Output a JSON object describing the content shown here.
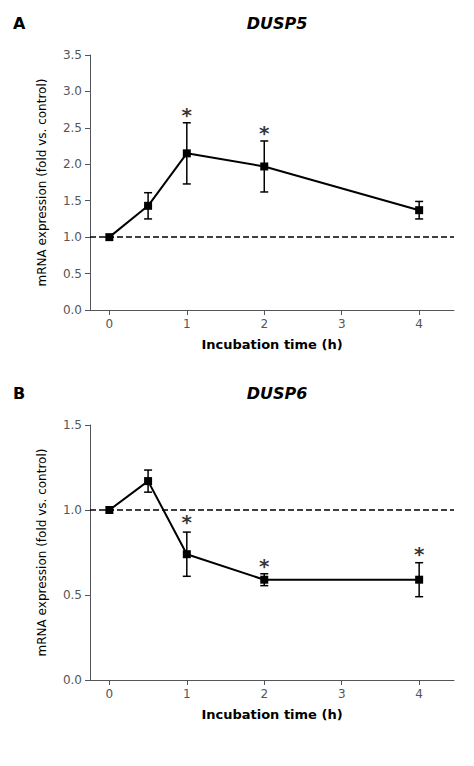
{
  "chart_data": [
    {
      "type": "line",
      "title": "DUSP5",
      "panel_label": "A",
      "x": [
        0,
        0.5,
        1,
        2,
        4
      ],
      "values": [
        1.0,
        1.43,
        2.15,
        1.97,
        1.37
      ],
      "yerr": [
        0.0,
        0.18,
        0.42,
        0.35,
        0.12
      ],
      "color": "#000000",
      "marker": "square",
      "annotations": [
        {
          "x": 1,
          "y": 2.6,
          "text": "*"
        },
        {
          "x": 2,
          "y": 2.35,
          "text": "*"
        }
      ],
      "reference_line": {
        "y": 1.0,
        "line_style": "dashed",
        "color": "#000000"
      },
      "xlabel": "Incubation time (h)",
      "ylabel": "mRNA expression (fold vs. control)",
      "xlim": [
        -0.25,
        4.45
      ],
      "xticks": [
        0,
        1,
        2,
        3,
        4
      ],
      "ylim": [
        0.0,
        3.5
      ],
      "yticks": [
        {
          "value": 0.0,
          "label": "0.0"
        },
        0.5,
        {
          "value": 1.0,
          "label": "1.0"
        },
        1.5,
        {
          "value": 2.0,
          "label": "2.0"
        },
        2.5,
        {
          "value": 3.0,
          "label": "3.0"
        },
        3.5
      ],
      "grid": false
    },
    {
      "type": "line",
      "title": "DUSP6",
      "panel_label": "B",
      "x": [
        0,
        0.5,
        1,
        2,
        4
      ],
      "values": [
        1.0,
        1.17,
        0.74,
        0.59,
        0.59
      ],
      "yerr": [
        0.0,
        0.065,
        0.13,
        0.035,
        0.1
      ],
      "color": "#000000",
      "marker": "square",
      "annotations": [
        {
          "x": 1,
          "y": 0.895,
          "text": "*"
        },
        {
          "x": 2,
          "y": 0.635,
          "text": "*"
        },
        {
          "x": 4,
          "y": 0.705,
          "text": "*"
        }
      ],
      "reference_line": {
        "y": 1.0,
        "line_style": "dashed",
        "color": "#000000"
      },
      "xlabel": "Incubation time (h)",
      "ylabel": "mRNA expression (fold vs. control)",
      "xlim": [
        -0.25,
        4.45
      ],
      "xticks": [
        0,
        1,
        2,
        3,
        4
      ],
      "ylim": [
        0.0,
        1.5
      ],
      "yticks": [
        {
          "value": 0.0,
          "label": "0.0"
        },
        0.5,
        {
          "value": 1.0,
          "label": "1.0"
        },
        1.5
      ],
      "grid": false
    }
  ]
}
